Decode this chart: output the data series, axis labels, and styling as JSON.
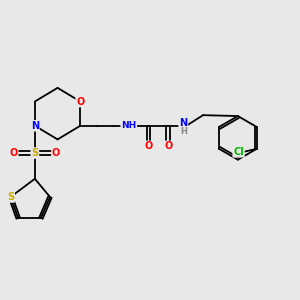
{
  "bg_color": "#e8e8e8",
  "atom_colors": {
    "O": "#ff0000",
    "N": "#0000ff",
    "S": "#ccaa00",
    "Cl": "#00bb00",
    "C": "#000000",
    "H": "#888888"
  }
}
